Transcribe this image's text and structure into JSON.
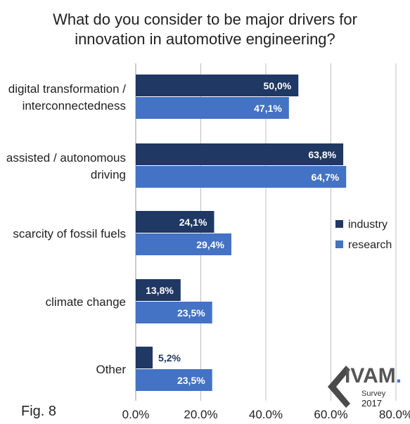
{
  "title_lines": [
    "What do you consider to be major drivers for",
    "innovation in automotive engineering?"
  ],
  "figure_label": "Fig. 8",
  "logo": {
    "name": "IVAM",
    "dot": ".",
    "subtitle": "Survey",
    "year": "2017"
  },
  "colors": {
    "industry": "#1f3864",
    "research": "#4472c4",
    "grid": "#bfbfbf",
    "text": "#222222"
  },
  "chart_data": {
    "type": "bar",
    "orientation": "horizontal",
    "categories": [
      "digital transformation / interconnectedness",
      "assisted / autonomous driving",
      "scarcity of fossil fuels",
      "climate change",
      "Other"
    ],
    "category_label_lines": [
      [
        "digital transformation /",
        "interconnectedness"
      ],
      [
        "assisted / autonomous",
        "driving"
      ],
      [
        "scarcity of fossil fuels"
      ],
      [
        "climate change"
      ],
      [
        "Other"
      ]
    ],
    "series": [
      {
        "name": "industry",
        "values": [
          50.0,
          63.8,
          24.1,
          13.8,
          5.2
        ],
        "labels": [
          "50,0%",
          "63,8%",
          "24,1%",
          "13,8%",
          "5,2%"
        ]
      },
      {
        "name": "research",
        "values": [
          47.1,
          64.7,
          29.4,
          23.5,
          23.5
        ],
        "labels": [
          "47,1%",
          "64,7%",
          "29,4%",
          "23,5%",
          "23,5%"
        ]
      }
    ],
    "xlim": [
      0,
      80
    ],
    "xticks": [
      "0.0%",
      "20.0%",
      "40.0%",
      "60.0%",
      "80.0%"
    ],
    "grid": true,
    "legend_position": "right"
  }
}
